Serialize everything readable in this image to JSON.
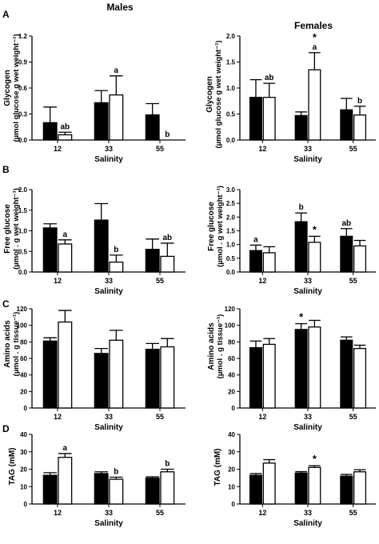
{
  "columns": [
    "Males",
    "Females"
  ],
  "panels": [
    {
      "letter": "A",
      "ylabel": "Glycogen",
      "ylabel2": "(µmol glucose g wet weight⁻¹)"
    },
    {
      "letter": "B",
      "ylabel": "Free glucose",
      "ylabel2": "(µmol . g wet weight⁻¹)"
    },
    {
      "letter": "C",
      "ylabel": "Amino acids",
      "ylabel2": "(µmol . g tissue⁻¹)"
    },
    {
      "letter": "D",
      "ylabel": "TAG (mM)",
      "ylabel2": ""
    }
  ],
  "chart_data": [
    {
      "type": "bar",
      "panel": "A",
      "column": "Males",
      "xlabel": "Salinity",
      "categories": [
        "12",
        "33",
        "55"
      ],
      "ylim": [
        0,
        1.2
      ],
      "yticks": [
        "0.0",
        "0.3",
        "0.6",
        "0.9",
        "1.2"
      ],
      "series": [
        {
          "values": [
            0.2,
            0.43,
            0.29
          ],
          "errors": [
            0.18,
            0.14,
            0.13
          ],
          "fill": "#000000"
        },
        {
          "values": [
            0.06,
            0.52,
            0.0
          ],
          "errors": [
            0.03,
            0.22,
            0.0
          ],
          "fill": "#ffffff"
        }
      ],
      "annotations": [
        {
          "category": 0,
          "series": 1,
          "text": "ab"
        },
        {
          "category": 1,
          "series": 1,
          "text": "a"
        },
        {
          "category": 2,
          "series": 1,
          "text": "b"
        }
      ]
    },
    {
      "type": "bar",
      "panel": "A",
      "column": "Females",
      "xlabel": "Salinity",
      "categories": [
        "12",
        "33",
        "55"
      ],
      "ylim": [
        0,
        2.0
      ],
      "yticks": [
        "0.0",
        "0.5",
        "1.0",
        "1.5",
        "2.0"
      ],
      "series": [
        {
          "values": [
            0.82,
            0.47,
            0.58
          ],
          "errors": [
            0.34,
            0.07,
            0.22
          ],
          "fill": "#000000"
        },
        {
          "values": [
            0.82,
            1.35,
            0.48
          ],
          "errors": [
            0.27,
            0.33,
            0.17
          ],
          "fill": "#ffffff"
        }
      ],
      "annotations": [
        {
          "category": 0,
          "series": 1,
          "text": "ab"
        },
        {
          "category": 1,
          "series": 1,
          "text": "a"
        },
        {
          "category": 1,
          "series": 1,
          "text": "*"
        },
        {
          "category": 2,
          "series": 1,
          "text": "b"
        }
      ]
    },
    {
      "type": "bar",
      "panel": "B",
      "column": "Males",
      "xlabel": "Salinity",
      "categories": [
        "12",
        "33",
        "55"
      ],
      "ylim": [
        0,
        2.0
      ],
      "yticks": [
        "0.0",
        "0.5",
        "1.0",
        "1.5",
        "2.0"
      ],
      "series": [
        {
          "values": [
            1.07,
            1.26,
            0.55
          ],
          "errors": [
            0.1,
            0.4,
            0.25
          ],
          "fill": "#000000"
        },
        {
          "values": [
            0.68,
            0.24,
            0.38
          ],
          "errors": [
            0.1,
            0.17,
            0.32
          ],
          "fill": "#ffffff"
        }
      ],
      "annotations": [
        {
          "category": 0,
          "series": 1,
          "text": "a"
        },
        {
          "category": 1,
          "series": 1,
          "text": "b"
        },
        {
          "category": 2,
          "series": 1,
          "text": "ab"
        }
      ]
    },
    {
      "type": "bar",
      "panel": "B",
      "column": "Females",
      "xlabel": "Salinity",
      "categories": [
        "12",
        "33",
        "55"
      ],
      "ylim": [
        0,
        3.0
      ],
      "yticks": [
        "0.0",
        "0.5",
        "1.0",
        "1.5",
        "2.0",
        "2.5",
        "3.0"
      ],
      "series": [
        {
          "values": [
            0.78,
            1.83,
            1.3
          ],
          "errors": [
            0.2,
            0.32,
            0.28
          ],
          "fill": "#000000"
        },
        {
          "values": [
            0.7,
            1.08,
            0.95
          ],
          "errors": [
            0.22,
            0.22,
            0.2
          ],
          "fill": "#ffffff"
        }
      ],
      "annotations": [
        {
          "category": 0,
          "series": 0,
          "text": "a"
        },
        {
          "category": 1,
          "series": 0,
          "text": "b"
        },
        {
          "category": 1,
          "series": 1,
          "text": "*"
        },
        {
          "category": 2,
          "series": 0,
          "text": "ab"
        }
      ]
    },
    {
      "type": "bar",
      "panel": "C",
      "column": "Males",
      "xlabel": "Salinity",
      "categories": [
        "12",
        "33",
        "55"
      ],
      "ylim": [
        0,
        120
      ],
      "yticks": [
        "0",
        "20",
        "40",
        "60",
        "80",
        "100",
        "120"
      ],
      "series": [
        {
          "values": [
            81,
            66,
            71
          ],
          "errors": [
            4,
            6,
            7
          ],
          "fill": "#000000"
        },
        {
          "values": [
            104,
            82,
            74
          ],
          "errors": [
            14,
            12,
            10
          ],
          "fill": "#ffffff"
        }
      ],
      "annotations": []
    },
    {
      "type": "bar",
      "panel": "C",
      "column": "Females",
      "xlabel": "Salinity",
      "categories": [
        "12",
        "33",
        "55"
      ],
      "ylim": [
        0,
        120
      ],
      "yticks": [
        "0",
        "20",
        "40",
        "60",
        "80",
        "100",
        "120"
      ],
      "series": [
        {
          "values": [
            73,
            95,
            82
          ],
          "errors": [
            8,
            7,
            4
          ],
          "fill": "#000000"
        },
        {
          "values": [
            77,
            98,
            72
          ],
          "errors": [
            7,
            8,
            4
          ],
          "fill": "#ffffff"
        }
      ],
      "annotations": [
        {
          "category": 1,
          "series": 0,
          "text": "*"
        }
      ]
    },
    {
      "type": "bar",
      "panel": "D",
      "column": "Males",
      "xlabel": "Salinity",
      "categories": [
        "12",
        "33",
        "55"
      ],
      "ylim": [
        0,
        40
      ],
      "yticks": [
        "0",
        "10",
        "20",
        "30",
        "40"
      ],
      "series": [
        {
          "values": [
            16.5,
            17.5,
            14.8
          ],
          "errors": [
            1.5,
            1.0,
            0.8
          ],
          "fill": "#000000"
        },
        {
          "values": [
            26.8,
            14.2,
            18.5
          ],
          "errors": [
            2.2,
            1.2,
            1.5
          ],
          "fill": "#ffffff"
        }
      ],
      "annotations": [
        {
          "category": 0,
          "series": 1,
          "text": "a"
        },
        {
          "category": 1,
          "series": 1,
          "text": "b"
        },
        {
          "category": 2,
          "series": 1,
          "text": "b"
        }
      ]
    },
    {
      "type": "bar",
      "panel": "D",
      "column": "Females",
      "xlabel": "Salinity",
      "categories": [
        "12",
        "33",
        "55"
      ],
      "ylim": [
        0,
        40
      ],
      "yticks": [
        "0",
        "10",
        "20",
        "30",
        "40"
      ],
      "series": [
        {
          "values": [
            16.5,
            17.8,
            16.0
          ],
          "errors": [
            1.0,
            0.8,
            1.0
          ],
          "fill": "#000000"
        },
        {
          "values": [
            23.5,
            21.0,
            18.5
          ],
          "errors": [
            2.0,
            1.0,
            1.2
          ],
          "fill": "#ffffff"
        }
      ],
      "annotations": [
        {
          "category": 1,
          "series": 1,
          "text": "*"
        }
      ]
    }
  ]
}
